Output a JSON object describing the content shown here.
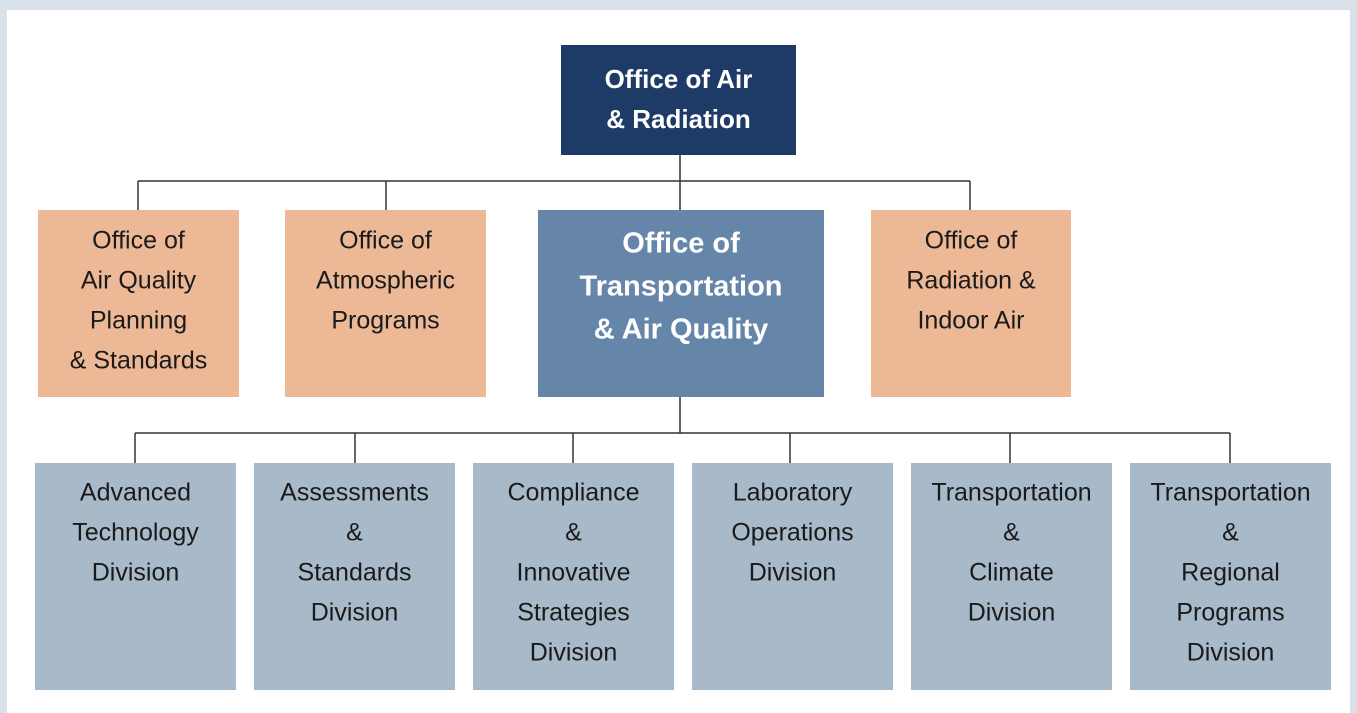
{
  "root": {
    "lines": [
      "Office of Air",
      "& Radiation"
    ]
  },
  "offices": [
    {
      "lines": [
        "Office of",
        "Air Quality",
        "Planning",
        "& Standards"
      ]
    },
    {
      "lines": [
        "Office of",
        "Atmospheric",
        "Programs"
      ]
    },
    {
      "lines": [
        "Office of",
        "Transportation",
        "& Air Quality"
      ]
    },
    {
      "lines": [
        "Office of",
        "Radiation &",
        "Indoor Air"
      ]
    }
  ],
  "divisions": [
    {
      "lines": [
        "Advanced",
        "Technology",
        "Division"
      ]
    },
    {
      "lines": [
        "Assessments",
        "&",
        "Standards",
        "Division"
      ]
    },
    {
      "lines": [
        "Compliance",
        "&",
        "Innovative",
        "Strategies",
        "Division"
      ]
    },
    {
      "lines": [
        "Laboratory",
        "Operations",
        "Division"
      ]
    },
    {
      "lines": [
        "Transportation",
        "&",
        "Climate",
        "Division"
      ]
    },
    {
      "lines": [
        "Transportation",
        "&",
        "Regional",
        "Programs",
        "Division"
      ]
    }
  ]
}
